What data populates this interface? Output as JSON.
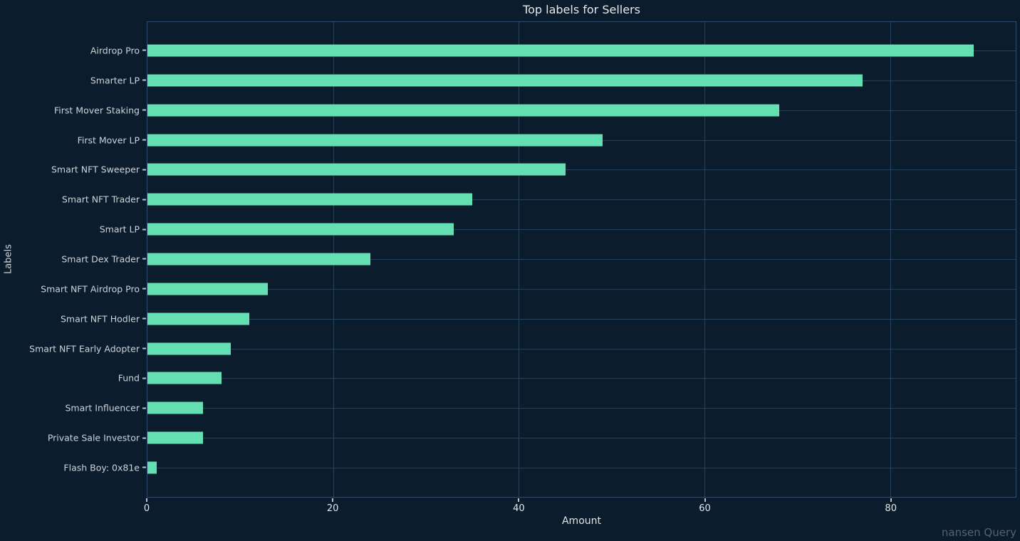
{
  "title": "Top labels for Sellers",
  "watermark": "nansen Query",
  "colors": {
    "background": "#0b1c2c",
    "bar": "#64dfb2",
    "grid": "#27425c",
    "border": "#2f4d6a",
    "title_text": "#e6eaee",
    "tick_text": "#e2e7eb",
    "label_text": "#ccd4da",
    "watermark_text": "#56636e"
  },
  "chart_data": {
    "type": "bar",
    "orientation": "horizontal",
    "title": "Top labels for Sellers",
    "xlabel": "Amount",
    "ylabel": "Labels",
    "categories": [
      "Airdrop Pro",
      "Smarter LP",
      "First Mover Staking",
      "First Mover LP",
      "Smart NFT Sweeper",
      "Smart NFT Trader",
      "Smart LP",
      "Smart Dex Trader",
      "Smart NFT Airdrop Pro",
      "Smart NFT Hodler",
      "Smart NFT Early Adopter",
      "Fund",
      "Smart Influencer",
      "Private Sale Investor",
      "Flash Boy: 0x81e"
    ],
    "values": [
      89,
      77,
      68,
      49,
      45,
      35,
      33,
      24,
      13,
      11,
      9,
      8,
      6,
      6,
      1
    ],
    "xticks": [
      0,
      20,
      40,
      60,
      80
    ],
    "xlim": [
      0,
      93.5
    ],
    "grid": true,
    "legend": null
  }
}
